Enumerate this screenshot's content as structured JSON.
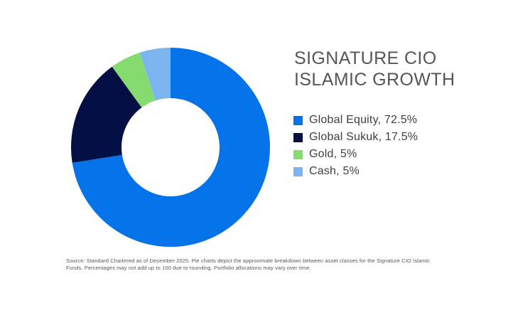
{
  "title": {
    "line1": "SIGNATURE CIO",
    "line2": "ISLAMIC GROWTH",
    "color": "#54565a"
  },
  "source": {
    "line1": "Source: Standard Chartered as of December 2025. Pie charts depict the approximate breakdown between asset classes for the Signature CIO Islamic",
    "line2": "Funds. Percentages may not add up to 100 due to rounding. Portfolio allocations may vary over time."
  },
  "chart_data": {
    "type": "pie",
    "variant": "donut",
    "title": "SIGNATURE CIO ISLAMIC GROWTH",
    "start_angle_deg": 0,
    "direction": "clockwise",
    "inner_radius_ratio": 0.49,
    "legend_position": "right",
    "slices": [
      {
        "label": "Global Equity",
        "value": 72.5,
        "color": "#0473ea",
        "legend_label": "Global Equity, 72.5%"
      },
      {
        "label": "Global Sukuk",
        "value": 17.5,
        "color": "#041045",
        "legend_label": "Global Sukuk, 17.5%"
      },
      {
        "label": "Gold",
        "value": 5,
        "color": "#86db6e",
        "legend_label": "Gold, 5%"
      },
      {
        "label": "Cash",
        "value": 5,
        "color": "#7cb4f0",
        "legend_label": "Cash, 5%"
      }
    ]
  }
}
